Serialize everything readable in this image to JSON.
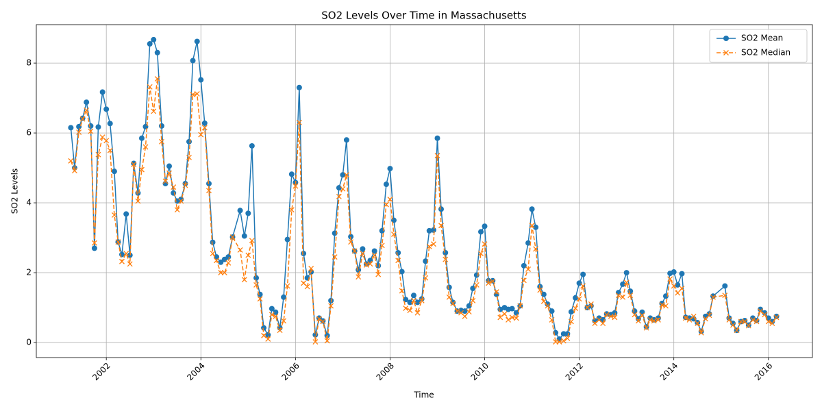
{
  "chart_data": {
    "type": "line",
    "title": "SO2 Levels Over Time in Massachusetts",
    "x_label": "Time",
    "y_label": "SO2 Levels",
    "x": [
      2001.25,
      2001.33,
      2001.42,
      2001.5,
      2001.58,
      2001.67,
      2001.75,
      2001.83,
      2001.92,
      2002.0,
      2002.08,
      2002.17,
      2002.25,
      2002.33,
      2002.42,
      2002.5,
      2002.58,
      2002.67,
      2002.75,
      2002.83,
      2002.92,
      2003.0,
      2003.08,
      2003.17,
      2003.25,
      2003.33,
      2003.42,
      2003.5,
      2003.58,
      2003.67,
      2003.75,
      2003.83,
      2003.92,
      2004.0,
      2004.08,
      2004.17,
      2004.25,
      2004.33,
      2004.42,
      2004.5,
      2004.58,
      2004.67,
      2004.83,
      2004.92,
      2005.0,
      2005.08,
      2005.17,
      2005.25,
      2005.33,
      2005.42,
      2005.5,
      2005.58,
      2005.67,
      2005.75,
      2005.83,
      2005.92,
      2006.0,
      2006.08,
      2006.17,
      2006.25,
      2006.33,
      2006.42,
      2006.5,
      2006.58,
      2006.67,
      2006.75,
      2006.83,
      2006.92,
      2007.0,
      2007.08,
      2007.17,
      2007.25,
      2007.33,
      2007.42,
      2007.5,
      2007.58,
      2007.67,
      2007.75,
      2007.83,
      2007.92,
      2008.0,
      2008.08,
      2008.17,
      2008.25,
      2008.33,
      2008.42,
      2008.5,
      2008.58,
      2008.67,
      2008.75,
      2008.83,
      2008.92,
      2009.0,
      2009.08,
      2009.17,
      2009.25,
      2009.33,
      2009.42,
      2009.5,
      2009.58,
      2009.67,
      2009.75,
      2009.83,
      2009.92,
      2010.0,
      2010.08,
      2010.17,
      2010.25,
      2010.33,
      2010.42,
      2010.5,
      2010.58,
      2010.67,
      2010.75,
      2010.83,
      2010.92,
      2011.0,
      2011.08,
      2011.17,
      2011.25,
      2011.33,
      2011.42,
      2011.5,
      2011.58,
      2011.67,
      2011.75,
      2011.83,
      2011.92,
      2012.0,
      2012.08,
      2012.17,
      2012.25,
      2012.33,
      2012.42,
      2012.5,
      2012.58,
      2012.67,
      2012.75,
      2012.83,
      2012.92,
      2013.0,
      2013.08,
      2013.17,
      2013.25,
      2013.33,
      2013.42,
      2013.5,
      2013.58,
      2013.67,
      2013.75,
      2013.83,
      2013.92,
      2014.0,
      2014.08,
      2014.17,
      2014.25,
      2014.33,
      2014.42,
      2014.5,
      2014.58,
      2014.67,
      2014.75,
      2014.83,
      2015.08,
      2015.17,
      2015.25,
      2015.33,
      2015.42,
      2015.5,
      2015.58,
      2015.67,
      2015.75,
      2015.83,
      2015.92,
      2016.0,
      2016.08,
      2016.17
    ],
    "series": [
      {
        "name": "SO2 Mean",
        "color": "#1f77b4",
        "linestyle": "solid",
        "marker": "o",
        "values": [
          6.15,
          5.0,
          6.18,
          6.42,
          6.88,
          6.2,
          2.7,
          6.17,
          7.17,
          6.68,
          6.27,
          4.9,
          2.88,
          2.52,
          3.68,
          2.5,
          5.13,
          4.28,
          5.85,
          6.18,
          8.55,
          8.67,
          8.3,
          6.2,
          4.55,
          5.05,
          4.28,
          4.05,
          4.1,
          4.55,
          5.75,
          8.07,
          8.62,
          7.52,
          6.28,
          4.55,
          2.87,
          2.45,
          2.3,
          2.38,
          2.45,
          3.02,
          3.78,
          3.05,
          3.7,
          5.63,
          1.85,
          1.38,
          0.42,
          0.22,
          0.97,
          0.87,
          0.42,
          1.3,
          2.95,
          4.82,
          4.58,
          7.3,
          2.55,
          1.85,
          2.02,
          0.22,
          0.7,
          0.62,
          0.2,
          1.2,
          3.13,
          4.43,
          4.8,
          5.8,
          3.03,
          2.62,
          2.08,
          2.68,
          2.25,
          2.35,
          2.62,
          2.2,
          3.2,
          4.53,
          4.98,
          3.5,
          2.57,
          2.03,
          1.23,
          1.15,
          1.35,
          1.15,
          1.25,
          2.33,
          3.2,
          3.22,
          5.85,
          3.82,
          2.57,
          1.58,
          1.15,
          0.9,
          0.92,
          0.9,
          1.05,
          1.55,
          1.93,
          3.17,
          3.33,
          1.77,
          1.77,
          1.38,
          0.95,
          1.0,
          0.95,
          0.97,
          0.85,
          1.05,
          2.2,
          2.85,
          3.82,
          3.3,
          1.6,
          1.38,
          1.1,
          0.9,
          0.28,
          0.1,
          0.25,
          0.25,
          0.88,
          1.28,
          1.7,
          1.95,
          1.0,
          1.05,
          0.62,
          0.7,
          0.65,
          0.82,
          0.8,
          0.85,
          1.43,
          1.67,
          2.0,
          1.47,
          0.9,
          0.68,
          0.87,
          0.45,
          0.7,
          0.65,
          0.7,
          1.12,
          1.33,
          1.98,
          2.02,
          1.65,
          1.97,
          0.72,
          0.7,
          0.68,
          0.57,
          0.32,
          0.75,
          0.82,
          1.33,
          1.62,
          0.7,
          0.55,
          0.35,
          0.6,
          0.63,
          0.5,
          0.7,
          0.63,
          0.95,
          0.85,
          0.7,
          0.6,
          0.75
        ]
      },
      {
        "name": "SO2 Median",
        "color": "#ff7f0e",
        "linestyle": "dashed",
        "marker": "x",
        "values": [
          5.2,
          4.92,
          6.02,
          6.4,
          6.65,
          6.05,
          2.85,
          5.38,
          5.88,
          5.78,
          5.5,
          3.65,
          2.88,
          2.32,
          2.55,
          2.25,
          5.1,
          4.05,
          4.95,
          5.6,
          7.32,
          6.62,
          7.55,
          5.75,
          4.62,
          4.85,
          4.45,
          3.8,
          4.05,
          4.5,
          5.3,
          7.1,
          7.12,
          5.95,
          6.15,
          4.35,
          2.55,
          2.35,
          2.0,
          2.0,
          2.28,
          3.02,
          2.65,
          1.8,
          2.5,
          2.92,
          1.65,
          1.25,
          0.2,
          0.1,
          0.8,
          0.75,
          0.35,
          0.62,
          1.62,
          3.8,
          4.48,
          6.3,
          1.7,
          1.6,
          2.12,
          0.02,
          0.68,
          0.6,
          0.05,
          1.05,
          2.45,
          4.18,
          4.4,
          4.8,
          2.88,
          2.62,
          1.88,
          2.55,
          2.22,
          2.25,
          2.5,
          1.95,
          2.78,
          3.95,
          4.1,
          3.1,
          2.35,
          1.48,
          0.98,
          0.92,
          1.2,
          0.85,
          1.2,
          1.85,
          2.75,
          2.82,
          5.35,
          3.35,
          2.38,
          1.3,
          1.12,
          0.9,
          0.85,
          0.75,
          0.88,
          1.2,
          1.65,
          2.55,
          2.82,
          1.7,
          1.75,
          1.45,
          0.72,
          0.82,
          0.65,
          0.72,
          0.7,
          1.05,
          1.78,
          2.1,
          3.35,
          2.68,
          1.5,
          1.18,
          1.05,
          0.65,
          0.02,
          0.02,
          0.05,
          0.12,
          0.6,
          0.98,
          1.25,
          1.62,
          1.0,
          1.1,
          0.55,
          0.65,
          0.55,
          0.8,
          0.75,
          0.72,
          1.35,
          1.3,
          1.72,
          1.35,
          0.8,
          0.62,
          0.78,
          0.42,
          0.65,
          0.62,
          0.65,
          1.08,
          1.05,
          1.82,
          1.62,
          1.42,
          1.55,
          0.7,
          0.65,
          0.75,
          0.55,
          0.28,
          0.68,
          0.78,
          1.3,
          1.35,
          0.65,
          0.5,
          0.35,
          0.6,
          0.6,
          0.48,
          0.65,
          0.6,
          0.9,
          0.8,
          0.6,
          0.55,
          0.72
        ]
      }
    ],
    "xlim": [
      2000.52,
      2016.93
    ],
    "xticks": [
      2002,
      2004,
      2006,
      2008,
      2010,
      2012,
      2014,
      2016
    ],
    "ylim": [
      -0.43,
      9.1
    ],
    "yticks": [
      0,
      2,
      4,
      6,
      8
    ],
    "grid": true,
    "legend": "upper right"
  }
}
